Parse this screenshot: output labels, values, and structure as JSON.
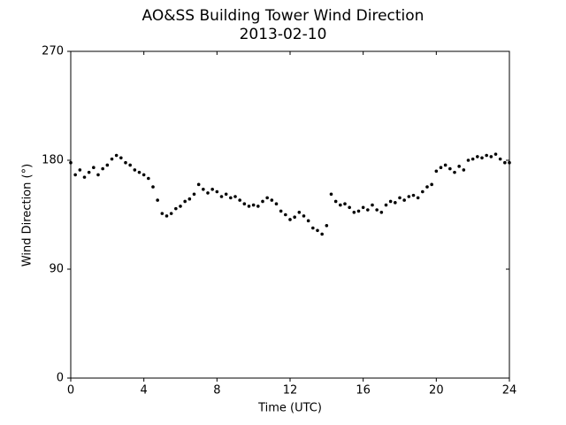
{
  "chart_data": {
    "type": "scatter",
    "title": "AO&SS Building Tower Wind Direction",
    "subtitle": "2013-02-10",
    "x_label": "Time (UTC)",
    "y_label": "Wind Direction (°)",
    "xlim": [
      0,
      24
    ],
    "xticks": [
      0,
      4,
      8,
      12,
      16,
      20,
      24
    ],
    "ylim": [
      0,
      270
    ],
    "yticks": [
      0,
      90,
      180,
      270
    ],
    "color": "#000000",
    "x": [
      0,
      0.25,
      0.5,
      0.75,
      1,
      1.25,
      1.5,
      1.75,
      2,
      2.25,
      2.5,
      2.75,
      3,
      3.25,
      3.5,
      3.75,
      4,
      4.25,
      4.5,
      4.75,
      5,
      5.25,
      5.5,
      5.75,
      6,
      6.25,
      6.5,
      6.75,
      7,
      7.25,
      7.5,
      7.75,
      8,
      8.25,
      8.5,
      8.75,
      9,
      9.25,
      9.5,
      9.75,
      10,
      10.25,
      10.5,
      10.75,
      11,
      11.25,
      11.5,
      11.75,
      12,
      12.25,
      12.5,
      12.75,
      13,
      13.25,
      13.5,
      13.75,
      14,
      14.25,
      14.5,
      14.75,
      15,
      15.25,
      15.5,
      15.75,
      16,
      16.25,
      16.5,
      16.75,
      17,
      17.25,
      17.5,
      17.75,
      18,
      18.25,
      18.5,
      18.75,
      19,
      19.25,
      19.5,
      19.75,
      20,
      20.25,
      20.5,
      20.75,
      21,
      21.25,
      21.5,
      21.75,
      22,
      22.25,
      22.5,
      22.75,
      23,
      23.25,
      23.5,
      23.75,
      24
    ],
    "values": [
      178,
      168,
      172,
      166,
      170,
      174,
      168,
      173,
      176,
      181,
      184,
      182,
      178,
      176,
      172,
      170,
      168,
      165,
      158,
      147,
      136,
      134,
      136,
      140,
      142,
      146,
      148,
      152,
      160,
      156,
      153,
      156,
      154,
      150,
      152,
      149,
      150,
      147,
      144,
      142,
      143,
      142,
      146,
      149,
      147,
      144,
      138,
      135,
      131,
      133,
      137,
      134,
      130,
      124,
      122,
      119,
      126,
      152,
      146,
      143,
      144,
      141,
      137,
      138,
      141,
      139,
      143,
      139,
      137,
      143,
      146,
      145,
      149,
      147,
      150,
      151,
      149,
      154,
      158,
      160,
      171,
      174,
      176,
      173,
      170,
      175,
      172,
      180,
      181,
      183,
      182,
      184,
      183,
      185,
      181,
      178,
      178
    ]
  }
}
